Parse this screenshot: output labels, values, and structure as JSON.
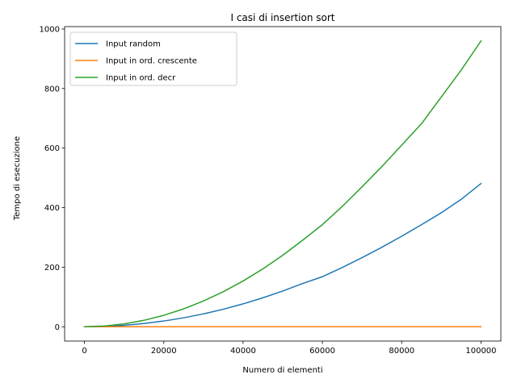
{
  "chart_data": {
    "type": "line",
    "title": "I casi di insertion sort",
    "xlabel": "Numero di elementi",
    "ylabel": "Tempo di esecuzione",
    "xlim": [
      -5000,
      105000
    ],
    "ylim": [
      -48,
      1008
    ],
    "xticks": [
      0,
      20000,
      40000,
      60000,
      80000,
      100000
    ],
    "yticks": [
      0,
      200,
      400,
      600,
      800,
      1000
    ],
    "grid": false,
    "legend_position": "top-left",
    "x": [
      0,
      5000,
      10000,
      15000,
      20000,
      25000,
      30000,
      35000,
      40000,
      45000,
      50000,
      55000,
      60000,
      65000,
      70000,
      75000,
      80000,
      85000,
      90000,
      95000,
      100000
    ],
    "series": [
      {
        "name": "Input random",
        "color": "#1f77b4",
        "values": [
          0,
          1.2,
          4.8,
          10.8,
          19.2,
          30,
          43.2,
          58.8,
          76.8,
          97.2,
          120,
          145.2,
          168,
          199,
          232,
          267,
          304,
          343,
          383,
          428,
          481
        ]
      },
      {
        "name": "Input in ord. crescente",
        "color": "#ff7f0e",
        "values": [
          0,
          0,
          0,
          0,
          0,
          0,
          0,
          0,
          0,
          0,
          0,
          0,
          0,
          0,
          0,
          0,
          0,
          0,
          0,
          0,
          0
        ]
      },
      {
        "name": "Input in ord. decr",
        "color": "#2ca02c",
        "values": [
          0,
          2.4,
          9.6,
          21.6,
          38.4,
          60,
          86.4,
          117.6,
          153.6,
          194.4,
          240,
          290.4,
          343,
          404,
          470,
          538,
          610,
          682,
          772,
          862,
          960
        ]
      }
    ]
  }
}
